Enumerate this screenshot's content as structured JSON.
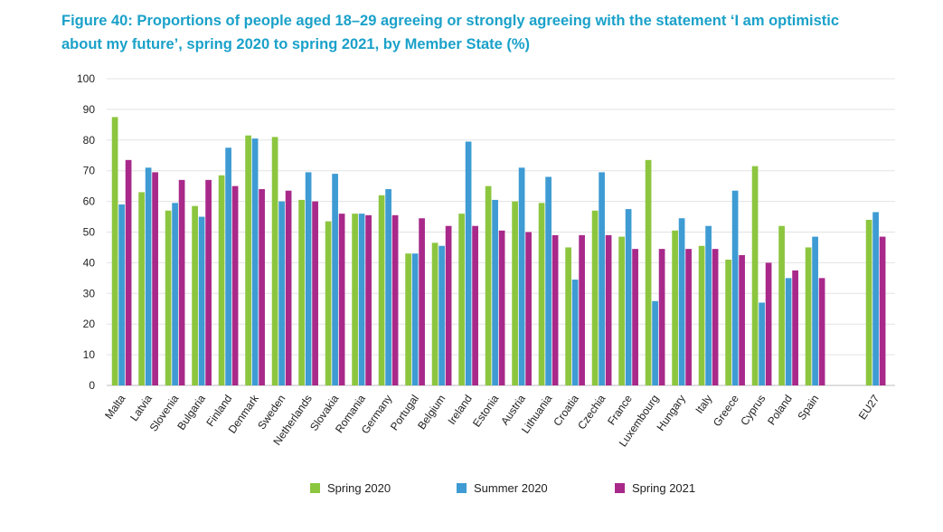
{
  "title": "Figure 40: Proportions of people aged 18–29 agreeing or strongly agreeing with the statement ‘I am optimistic about my future’, spring 2020 to spring 2021, by Member State (%)",
  "colors": {
    "spring2020": "#8cc63f",
    "summer2020": "#3e9bd3",
    "spring2021": "#a8298a"
  },
  "chart_data": {
    "type": "bar",
    "ylim": [
      0,
      100
    ],
    "yticks": [
      0,
      10,
      20,
      30,
      40,
      50,
      60,
      70,
      80,
      90,
      100
    ],
    "grid": true,
    "legend_position": "bottom",
    "categories": [
      "Malta",
      "Latvia",
      "Slovenia",
      "Bulgaria",
      "Finland",
      "Denmark",
      "Sweden",
      "Netherlands",
      "Slovakia",
      "Romania",
      "Germany",
      "Portugal",
      "Belgium",
      "Ireland",
      "Estonia",
      "Austria",
      "Lithuania",
      "Croatia",
      "Czechia",
      "France",
      "Luxembourg",
      "Hungary",
      "Italy",
      "Greece",
      "Cyprus",
      "Poland",
      "Spain",
      "EU27"
    ],
    "series": [
      {
        "name": "Spring 2020",
        "values": [
          87.5,
          63,
          57,
          58.5,
          68.5,
          81.5,
          81,
          60.5,
          53.5,
          56,
          62,
          43,
          46.5,
          56,
          65,
          60,
          59.5,
          45,
          57,
          48.5,
          73.5,
          50.5,
          45.5,
          41,
          71.5,
          52,
          45,
          54
        ]
      },
      {
        "name": "Summer 2020",
        "values": [
          59,
          71,
          59.5,
          55,
          77.5,
          80.5,
          60,
          69.5,
          69,
          56,
          64,
          43,
          45.5,
          79.5,
          60.5,
          71,
          68,
          34.5,
          69.5,
          57.5,
          27.5,
          54.5,
          52,
          63.5,
          27,
          35,
          48.5,
          56.5
        ]
      },
      {
        "name": "Spring 2021",
        "values": [
          73.5,
          69.5,
          67,
          67,
          65,
          64,
          63.5,
          60,
          56,
          55.5,
          55.5,
          54.5,
          52,
          52,
          50.5,
          50,
          49,
          49,
          49,
          44.5,
          44.5,
          44.5,
          44.5,
          42.5,
          40,
          37.5,
          35,
          48.5
        ]
      }
    ]
  }
}
